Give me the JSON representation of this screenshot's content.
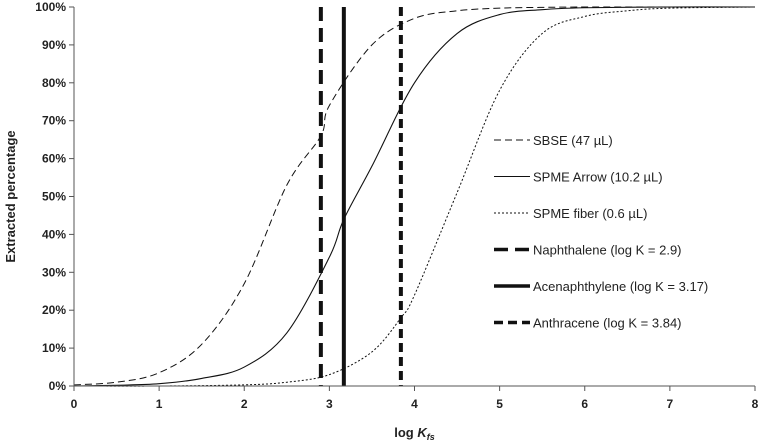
{
  "chart_data": {
    "type": "line",
    "xlabel": "log ",
    "xlabel_sub": "K",
    "xlabel_subscript": "fs",
    "ylabel": "Extracted percentage",
    "xlim": [
      0,
      8
    ],
    "ylim": [
      0,
      100
    ],
    "x_ticks": [
      "0",
      "1",
      "2",
      "3",
      "4",
      "5",
      "6",
      "7",
      "8"
    ],
    "y_ticks": [
      "0%",
      "10%",
      "20%",
      "30%",
      "40%",
      "50%",
      "60%",
      "70%",
      "80%",
      "90%",
      "100%"
    ],
    "grid": false,
    "legend_position": "right",
    "series": [
      {
        "name": "SBSE (47 µL)",
        "style": "dashed",
        "x": [
          0,
          0.5,
          1,
          1.5,
          2,
          2.5,
          2.9,
          3,
          3.5,
          4,
          4.5,
          5,
          5.5,
          6,
          7,
          8
        ],
        "y": [
          0.3,
          1,
          3.5,
          11,
          27,
          53,
          66,
          74,
          90,
          97,
          99,
          99.7,
          99.9,
          100,
          100,
          100
        ]
      },
      {
        "name": "SPME Arrow (10.2 µL)",
        "style": "solid-thin",
        "x": [
          0,
          0.5,
          1,
          1.5,
          2,
          2.5,
          3,
          3.17,
          3.5,
          4,
          4.5,
          5,
          5.5,
          6,
          7,
          8
        ],
        "y": [
          0,
          0.2,
          0.6,
          2,
          5,
          14,
          34,
          44,
          58,
          80,
          93,
          98,
          99.3,
          99.8,
          100,
          100
        ]
      },
      {
        "name": "SPME fiber (0.6 µL)",
        "style": "dotted",
        "x": [
          0,
          1,
          2,
          2.5,
          3,
          3.5,
          3.84,
          4,
          4.5,
          5,
          5.5,
          6,
          6.5,
          7,
          8
        ],
        "y": [
          0,
          0,
          0.3,
          1,
          3,
          9,
          18,
          24,
          51,
          78,
          93,
          97.5,
          99,
          99.7,
          100
        ]
      }
    ],
    "vertical_lines": [
      {
        "name": "Naphthalene (log K = 2.9)",
        "x": 2.9,
        "style": "thick-dashed"
      },
      {
        "name": "Acenaphthylene (log K = 3.17)",
        "x": 3.17,
        "style": "thick-solid"
      },
      {
        "name": "Anthracene (log K = 3.84)",
        "x": 3.84,
        "style": "thick-dashed-short"
      }
    ]
  }
}
